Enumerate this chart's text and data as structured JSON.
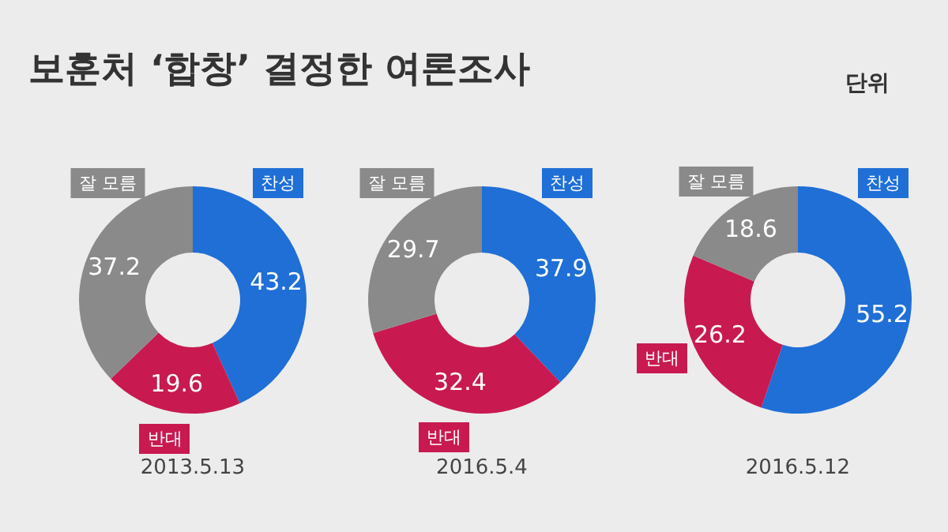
{
  "chart_data": [
    {
      "type": "donut",
      "title": "보훈처 ‘합창’ 결정한 여론조사",
      "annotations": [
        "단위"
      ],
      "subtitle": "2013.5.13",
      "categories": [
        "찬성",
        "반대",
        "잘 모름"
      ],
      "values": [
        43.2,
        19.6,
        37.2
      ],
      "colors": [
        "#1f6fd6",
        "#c81a50",
        "#8a8a8a"
      ],
      "data_labels": true,
      "legend": false
    },
    {
      "type": "donut",
      "subtitle": "2016.5.4",
      "categories": [
        "찬성",
        "반대",
        "잘 모름"
      ],
      "values": [
        37.9,
        32.4,
        29.7
      ],
      "colors": [
        "#1f6fd6",
        "#c81a50",
        "#8a8a8a"
      ],
      "data_labels": true,
      "legend": false
    },
    {
      "type": "donut",
      "subtitle": "2016.5.12",
      "categories": [
        "찬성",
        "반대",
        "잘 모름"
      ],
      "values": [
        55.2,
        26.2,
        18.6
      ],
      "colors": [
        "#1f6fd6",
        "#c81a50",
        "#8a8a8a"
      ],
      "data_labels": true,
      "legend": false
    }
  ]
}
